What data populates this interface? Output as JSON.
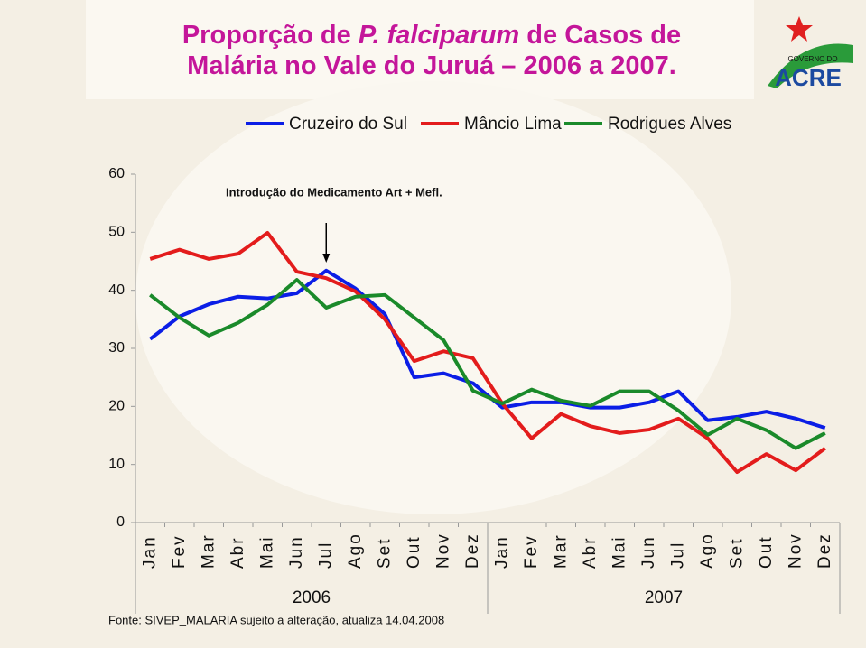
{
  "logo": {
    "top": "GOVERNO DO",
    "name": "ACRE"
  },
  "chart_data": {
    "type": "line",
    "title_parts": [
      "Proporção de ",
      "P. falciparum",
      " de Casos de",
      "Malária no Vale do Juruá – 2006 a 2007."
    ],
    "annotation": "Introdução do Medicamento Art + Mefl.",
    "source": "Fonte: SIVEP_MALARIA sujeito a alteração, atualiza 14.04.2008",
    "categories": [
      "Jan",
      "Fev",
      "Mar",
      "Abr",
      "Mai",
      "Jun",
      "Jul",
      "Ago",
      "Set",
      "Out",
      "Nov",
      "Dez",
      "Jan",
      "Fev",
      "Mar",
      "Abr",
      "Mai",
      "Jun",
      "Jul",
      "Ago",
      "Set",
      "Out",
      "Nov",
      "Dez"
    ],
    "year_groups": [
      "2006",
      "2007"
    ],
    "ylim": [
      0,
      60
    ],
    "yticks": [
      0,
      10,
      20,
      30,
      40,
      50,
      60
    ],
    "series": [
      {
        "name": "Cruzeiro do Sul",
        "color": "#0b1ee6",
        "values": [
          31.6,
          35.5,
          37.6,
          38.9,
          38.6,
          39.5,
          43.4,
          40.3,
          35.9,
          25.0,
          25.7,
          24.0,
          19.8,
          20.7,
          20.7,
          19.8,
          19.8,
          20.7,
          22.6,
          17.6,
          18.2,
          19.1,
          17.9,
          16.3
        ]
      },
      {
        "name": "Mâncio Lima",
        "color": "#e31c1c",
        "values": [
          45.4,
          47.0,
          45.4,
          46.3,
          49.9,
          43.2,
          42.1,
          39.8,
          35.0,
          27.8,
          29.5,
          28.3,
          20.5,
          14.5,
          18.7,
          16.6,
          15.4,
          16.0,
          17.9,
          14.5,
          8.7,
          11.8,
          9.0,
          12.8
        ]
      },
      {
        "name": "Rodrigues Alves",
        "color": "#1a8a2a",
        "values": [
          39.2,
          35.3,
          32.2,
          34.4,
          37.5,
          41.8,
          37.0,
          38.9,
          39.2,
          35.3,
          31.4,
          22.7,
          20.5,
          22.9,
          21.0,
          20.1,
          22.6,
          22.6,
          19.3,
          15.1,
          17.9,
          15.9,
          12.8,
          15.4
        ]
      }
    ]
  }
}
